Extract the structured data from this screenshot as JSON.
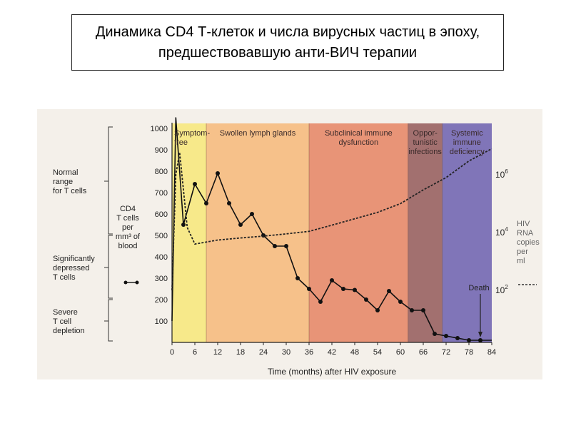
{
  "slide": {
    "title": "Динамика  CD4  Т-клеток и числа  вирусных  частиц в эпоху,  предшествовавшую  анти-ВИЧ терапии"
  },
  "chart_data": {
    "type": "line",
    "xlabel": "Time (months) after HIV exposure",
    "x_ticks": [
      0,
      6,
      12,
      18,
      24,
      30,
      36,
      42,
      48,
      54,
      60,
      66,
      72,
      78,
      84
    ],
    "xlim": [
      0,
      84
    ],
    "y_ticks": [
      100,
      200,
      300,
      400,
      500,
      600,
      700,
      800,
      900,
      1000
    ],
    "ylim": [
      0,
      1000
    ],
    "ylabel_lines": [
      "CD4",
      "T cells",
      "per",
      "mm³ of",
      "blood"
    ],
    "right_axis": {
      "ticks": [
        {
          "label": "10⁶",
          "base": "10",
          "exp": "6",
          "value": 1000000
        },
        {
          "label": "10⁴",
          "base": "10",
          "exp": "4",
          "value": 10000
        },
        {
          "label": "10²",
          "base": "10",
          "exp": "2",
          "value": 100
        }
      ],
      "label_lines": [
        "HIV",
        "RNA",
        "copies",
        "per",
        "ml"
      ]
    },
    "phases": [
      {
        "name_lines": [
          "Symptom-",
          "free"
        ],
        "start": 0,
        "end": 9,
        "color": "#f7e98a"
      },
      {
        "name_lines": [
          "Swollen lymph glands"
        ],
        "start": 9,
        "end": 36,
        "color": "#f6c18a"
      },
      {
        "name_lines": [
          "Subclinical immune",
          "dysfunction"
        ],
        "start": 36,
        "end": 62,
        "color": "#e89477"
      },
      {
        "name_lines": [
          "Oppor-",
          "tunistic",
          "infections"
        ],
        "start": 62,
        "end": 71,
        "color": "#a2706f"
      },
      {
        "name_lines": [
          "Systemic",
          "immune",
          "deficiency"
        ],
        "start": 71,
        "end": 84,
        "color": "#8075b8"
      }
    ],
    "series": [
      {
        "kind": "cd4",
        "x": [
          0,
          1,
          3,
          6,
          9,
          12,
          15,
          18,
          21,
          24,
          27,
          30,
          33,
          36,
          39,
          42,
          45,
          48,
          51,
          54,
          57,
          60,
          63,
          66,
          69,
          72,
          75,
          78,
          81,
          84
        ],
        "y": [
          100,
          1050,
          550,
          740,
          650,
          790,
          650,
          550,
          600,
          500,
          450,
          450,
          300,
          250,
          190,
          290,
          250,
          245,
          200,
          150,
          240,
          190,
          150,
          150,
          40,
          30,
          20,
          10,
          10,
          10
        ],
        "marker_x": [
          3,
          6,
          9,
          12,
          15,
          18,
          21,
          24,
          27,
          30,
          33,
          36,
          39,
          42,
          45,
          48,
          51,
          54,
          57,
          60,
          63,
          66,
          69,
          72,
          75,
          78,
          81
        ]
      },
      {
        "kind": "hiv_rna",
        "x": [
          0,
          1,
          2,
          4,
          6,
          12,
          18,
          24,
          30,
          36,
          42,
          48,
          54,
          60,
          66,
          72,
          78,
          84
        ],
        "y": [
          100,
          1000000,
          6000000,
          15000,
          4000,
          5500,
          6500,
          7500,
          9000,
          11000,
          18000,
          30000,
          50000,
          100000,
          300000,
          800000,
          3000000,
          8000000
        ]
      }
    ],
    "ranges": [
      {
        "label_lines": [
          "Normal",
          "range",
          "for T cells"
        ],
        "from": 500,
        "to": 1000
      },
      {
        "label_lines": [
          "Significantly",
          "depressed",
          "T cells"
        ],
        "from": 200,
        "to": 500
      },
      {
        "label_lines": [
          "Severe",
          "T cell",
          "depletion"
        ],
        "from": 0,
        "to": 200
      }
    ],
    "annotations": [
      {
        "text": "Death",
        "x": 81
      }
    ]
  }
}
